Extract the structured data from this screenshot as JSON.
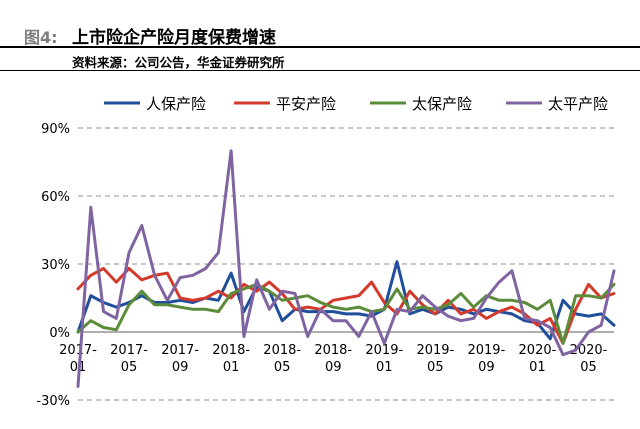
{
  "header": {
    "figure_number": "图4:",
    "title": "上市险企产险月度保费增速",
    "source": "资料来源：公司公告，华金证券研究所"
  },
  "chart_data": {
    "type": "line",
    "title": "",
    "xlabel": "",
    "ylabel": "",
    "ylim": [
      -30,
      90
    ],
    "y_ticks": [
      -30,
      0,
      30,
      60,
      90
    ],
    "y_tick_labels": [
      "-30%",
      "0%",
      "30%",
      "60%",
      "90%"
    ],
    "grid": true,
    "legend_position": "top",
    "x": [
      "2017-01",
      "2017-02",
      "2017-03",
      "2017-04",
      "2017-05",
      "2017-06",
      "2017-07",
      "2017-08",
      "2017-09",
      "2017-10",
      "2017-11",
      "2017-12",
      "2018-01",
      "2018-02",
      "2018-03",
      "2018-04",
      "2018-05",
      "2018-06",
      "2018-07",
      "2018-08",
      "2018-09",
      "2018-10",
      "2018-11",
      "2018-12",
      "2019-01",
      "2019-02",
      "2019-03",
      "2019-04",
      "2019-05",
      "2019-06",
      "2019-07",
      "2019-08",
      "2019-09",
      "2019-10",
      "2019-11",
      "2019-12",
      "2020-01",
      "2020-02",
      "2020-03",
      "2020-04",
      "2020-05",
      "2020-06",
      "2020-07"
    ],
    "x_tick_labels": [
      {
        "index": 0,
        "top": "2017-",
        "bottom": "01"
      },
      {
        "index": 4,
        "top": "2017-",
        "bottom": "05"
      },
      {
        "index": 8,
        "top": "2017-",
        "bottom": "09"
      },
      {
        "index": 12,
        "top": "2018-",
        "bottom": "01"
      },
      {
        "index": 16,
        "top": "2018-",
        "bottom": "05"
      },
      {
        "index": 20,
        "top": "2018-",
        "bottom": "09"
      },
      {
        "index": 24,
        "top": "2019-",
        "bottom": "01"
      },
      {
        "index": 28,
        "top": "2019-",
        "bottom": "05"
      },
      {
        "index": 32,
        "top": "2019-",
        "bottom": "09"
      },
      {
        "index": 36,
        "top": "2020-",
        "bottom": "01"
      },
      {
        "index": 40,
        "top": "2020-",
        "bottom": "05"
      }
    ],
    "series": [
      {
        "name": "人保产险",
        "color": "#1f4e9b",
        "values": [
          0,
          16,
          13,
          11,
          13,
          16,
          13,
          13,
          14,
          13,
          15,
          14,
          26,
          9,
          20,
          18,
          5,
          10,
          9,
          9,
          9,
          8,
          8,
          7,
          10,
          31,
          8,
          10,
          8,
          11,
          10,
          8,
          10,
          9,
          8,
          5,
          4,
          -3,
          14,
          8,
          7,
          8,
          3
        ]
      },
      {
        "name": "平安产险",
        "color": "#d33a2c",
        "values": [
          19,
          25,
          28,
          22,
          28,
          23,
          25,
          26,
          15,
          14,
          15,
          18,
          15,
          21,
          18,
          22,
          17,
          10,
          11,
          10,
          14,
          15,
          16,
          22,
          13,
          8,
          18,
          12,
          8,
          14,
          8,
          10,
          6,
          9,
          11,
          8,
          3,
          6,
          -5,
          10,
          21,
          15,
          17
        ]
      },
      {
        "name": "太保产险",
        "color": "#5b8c3a",
        "values": [
          0,
          5,
          2,
          1,
          12,
          18,
          12,
          12,
          11,
          10,
          10,
          9,
          17,
          19,
          21,
          18,
          14,
          15,
          16,
          13,
          11,
          10,
          11,
          9,
          10,
          19,
          10,
          11,
          10,
          12,
          17,
          11,
          16,
          14,
          14,
          13,
          10,
          14,
          -5,
          16,
          16,
          15,
          21
        ]
      },
      {
        "name": "太平产险",
        "color": "#8064a2",
        "values": [
          -24,
          55,
          9,
          6,
          35,
          47,
          25,
          14,
          24,
          25,
          28,
          35,
          80,
          -2,
          23,
          10,
          18,
          17,
          -2,
          10,
          5,
          5,
          -2,
          9,
          -5,
          10,
          9,
          16,
          11,
          7,
          5,
          6,
          15,
          22,
          27,
          6,
          5,
          2,
          -10,
          -8,
          0,
          3,
          27
        ]
      }
    ]
  }
}
